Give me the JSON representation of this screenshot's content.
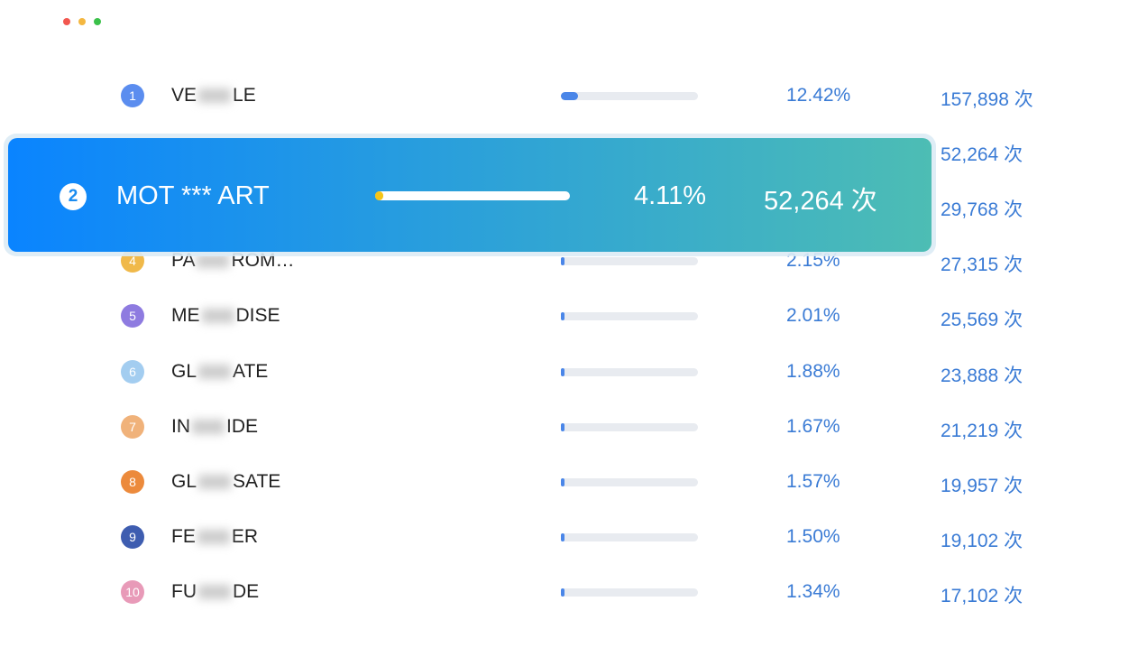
{
  "window": {
    "controls": [
      "close",
      "minimize",
      "maximize"
    ]
  },
  "list": {
    "rows": [
      {
        "rank": 1,
        "name_start": "VE",
        "name_end": "LE",
        "share": 12.42,
        "share_label": "12.42%",
        "count_label": "157,898 次",
        "badge_color": "#5b8def"
      },
      {
        "rank": null,
        "name_start": null,
        "name_end": null,
        "share": null,
        "share_label": null,
        "count_label": "52,264 次",
        "badge_color": null
      },
      {
        "rank": null,
        "name_start": null,
        "name_end": null,
        "share": null,
        "share_label": null,
        "count_label": "29,768 次",
        "badge_color": null
      },
      {
        "rank": 4,
        "name_start": "PA",
        "name_end": "ROM…",
        "share": 2.15,
        "share_label": "2.15%",
        "count_label": "27,315 次",
        "badge_color": "#f0b94a"
      },
      {
        "rank": 5,
        "name_start": "ME",
        "name_end": "DISE",
        "share": 2.01,
        "share_label": "2.01%",
        "count_label": "25,569 次",
        "badge_color": "#8e7be0"
      },
      {
        "rank": 6,
        "name_start": "GL",
        "name_end": "ATE",
        "share": 1.88,
        "share_label": "1.88%",
        "count_label": "23,888 次",
        "badge_color": "#a3cdf0"
      },
      {
        "rank": 7,
        "name_start": "IN",
        "name_end": "IDE",
        "share": 1.67,
        "share_label": "1.67%",
        "count_label": "21,219 次",
        "badge_color": "#f0b27a"
      },
      {
        "rank": 8,
        "name_start": "GL",
        "name_end": "SATE",
        "share": 1.57,
        "share_label": "1.57%",
        "count_label": "19,957 次",
        "badge_color": "#ec8a3c"
      },
      {
        "rank": 9,
        "name_start": "FE",
        "name_end": "ER",
        "share": 1.5,
        "share_label": "1.50%",
        "count_label": "19,102 次",
        "badge_color": "#3e5db0"
      },
      {
        "rank": 10,
        "name_start": "FU",
        "name_end": "DE",
        "share": 1.34,
        "share_label": "1.34%",
        "count_label": "17,102 次",
        "badge_color": "#e89ab8"
      }
    ]
  },
  "highlight": {
    "rank": 2,
    "name": "MOT *** ART",
    "share": 4.11,
    "share_label": "4.11%",
    "count_label": "52,264 次"
  }
}
